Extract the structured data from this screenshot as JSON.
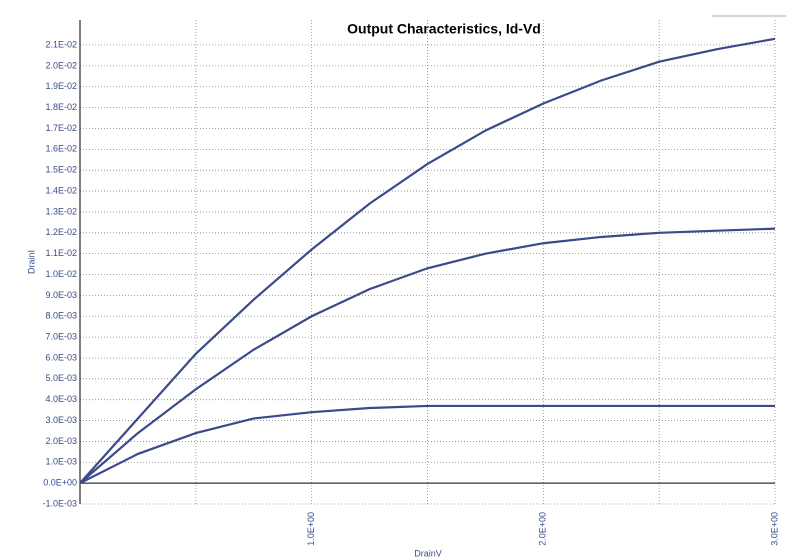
{
  "chart_data": {
    "type": "line",
    "title": "Output Characteristics, Id-Vd",
    "x_label": "DrainV",
    "y_label": "DrainI",
    "x": [
      0,
      0.25,
      0.5,
      0.75,
      1,
      1.25,
      1.5,
      1.75,
      2,
      2.25,
      2.5,
      2.75,
      3
    ],
    "series": [
      {
        "color": "#3b4a8a",
        "values": [
          0,
          0.0031,
          0.0062,
          0.0088,
          0.0112,
          0.0134,
          0.0153,
          0.0169,
          0.0182,
          0.0193,
          0.0202,
          0.0208,
          0.0213
        ]
      },
      {
        "color": "#3b4a8a",
        "values": [
          0,
          0.0024,
          0.0045,
          0.0064,
          0.008,
          0.0093,
          0.0103,
          0.011,
          0.0115,
          0.0118,
          0.012,
          0.0121,
          0.0122
        ]
      },
      {
        "color": "#3b4a8a",
        "values": [
          0,
          0.0014,
          0.0024,
          0.0031,
          0.0034,
          0.0036,
          0.0037,
          0.0037,
          0.0037,
          0.0037,
          0.0037,
          0.0037,
          0.0037
        ]
      }
    ],
    "xlim": [
      0,
      3
    ],
    "xticks": [
      {
        "value": 1,
        "label": "1.0E+00"
      },
      {
        "value": 2,
        "label": "2.0E+00"
      },
      {
        "value": 3,
        "label": "3.0E+00"
      }
    ],
    "xminor": [
      0.5,
      1.5,
      2.5
    ],
    "ylim": [
      -0.001,
      0.0222
    ],
    "yticks": [
      {
        "value": -0.001,
        "label": "-1.0E-03"
      },
      {
        "value": 0,
        "label": "0.0E+00"
      },
      {
        "value": 0.001,
        "label": "1.0E-03"
      },
      {
        "value": 0.002,
        "label": "2.0E-03"
      },
      {
        "value": 0.003,
        "label": "3.0E-03"
      },
      {
        "value": 0.004,
        "label": "4.0E-03"
      },
      {
        "value": 0.005,
        "label": "5.0E-03"
      },
      {
        "value": 0.006,
        "label": "6.0E-03"
      },
      {
        "value": 0.007,
        "label": "7.0E-03"
      },
      {
        "value": 0.008,
        "label": "8.0E-03"
      },
      {
        "value": 0.009,
        "label": "9.0E-03"
      },
      {
        "value": 0.01,
        "label": "1.0E-02"
      },
      {
        "value": 0.011,
        "label": "1.1E-02"
      },
      {
        "value": 0.012,
        "label": "1.2E-02"
      },
      {
        "value": 0.013,
        "label": "1.3E-02"
      },
      {
        "value": 0.014,
        "label": "1.4E-02"
      },
      {
        "value": 0.015,
        "label": "1.5E-02"
      },
      {
        "value": 0.016,
        "label": "1.6E-02"
      },
      {
        "value": 0.017,
        "label": "1.7E-02"
      },
      {
        "value": 0.018,
        "label": "1.8E-02"
      },
      {
        "value": 0.019,
        "label": "1.9E-02"
      },
      {
        "value": 0.02,
        "label": "2.0E-02"
      },
      {
        "value": 0.021,
        "label": "2.1E-02"
      }
    ],
    "grid": true
  }
}
